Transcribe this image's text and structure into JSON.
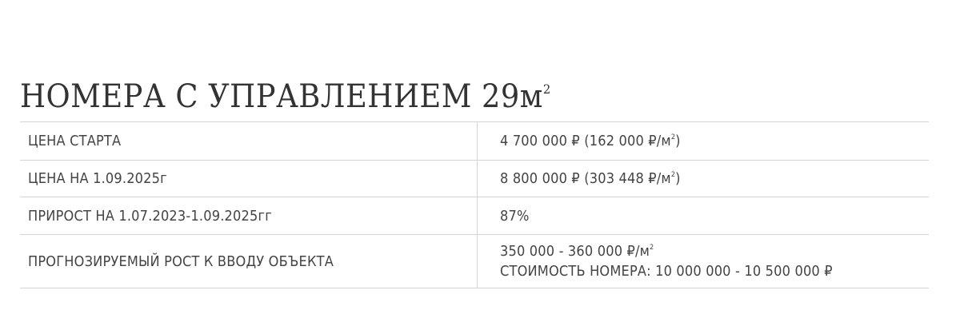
{
  "title": {
    "text": "НОМЕРА С УПРАВЛЕНИЕМ 29м",
    "sup": "2"
  },
  "rows": [
    {
      "label": "ЦЕНА СТАРТА",
      "value": {
        "a": "4 700 000 ₽ (162 000 ₽/м",
        "sup": "2",
        "b": ")"
      }
    },
    {
      "label": "ЦЕНА НА 1.09.2025г",
      "value": {
        "a": "8 800 000 ₽ (303 448 ₽/м",
        "sup": "2",
        "b": ")"
      }
    },
    {
      "label": "ПРИРОСТ НА 1.07.2023-1.09.2025гг",
      "value": {
        "a": "87%"
      }
    },
    {
      "label": "ПРОГНОЗИРУЕМЫЙ РОСТ К ВВОДУ ОБЪЕКТА",
      "value": {
        "a": "350 000 - 360 000 ₽/м",
        "sup": "2",
        "b": ""
      },
      "value2": "СТОИМОСТЬ НОМЕРА: 10 000 000 - 10 500 000 ₽"
    }
  ]
}
